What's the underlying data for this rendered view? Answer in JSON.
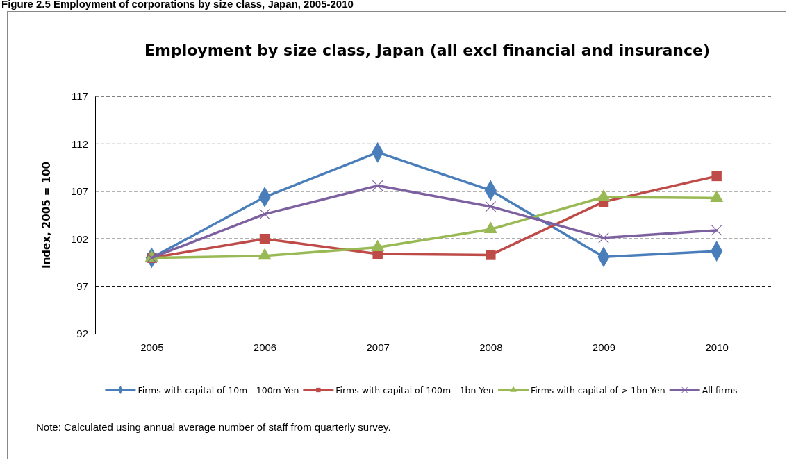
{
  "chart_data": {
    "type": "line",
    "title": "Employment by size class, Japan (all excl financial and insurance)",
    "ylabel": "Index, 2005 = 100",
    "categories": [
      "2005",
      "2006",
      "2007",
      "2008",
      "2009",
      "2010"
    ],
    "series": [
      {
        "name": "Firms with capital of 10m - 100m Yen",
        "color": "#4a7ebb",
        "marker": "diamond",
        "values": [
          100,
          106.4,
          111.1,
          107.1,
          100.1,
          100.7
        ]
      },
      {
        "name": "Firms with capital of 100m - 1bn Yen",
        "color": "#be4b48",
        "marker": "square",
        "values": [
          100,
          102.0,
          100.4,
          100.3,
          105.9,
          108.6
        ]
      },
      {
        "name": "Firms with capital of > 1bn Yen",
        "color": "#98b954",
        "marker": "triangle",
        "values": [
          100,
          100.2,
          101.1,
          103.0,
          106.4,
          106.3
        ]
      },
      {
        "name": "All firms",
        "color": "#7d60a0",
        "marker": "cross",
        "values": [
          100,
          104.6,
          107.6,
          105.4,
          102.1,
          102.9
        ]
      }
    ],
    "ylim": [
      92,
      117
    ],
    "yticks": [
      92,
      97,
      102,
      107,
      112,
      117
    ],
    "grid": "y",
    "legend": "bottom",
    "line_style": "solid",
    "annotations": [
      "Figure 2.5 Employment of corporations by size class, Japan, 2005-2010",
      "Note:  Calculated using annual average number of staff from quarterly survey."
    ]
  }
}
